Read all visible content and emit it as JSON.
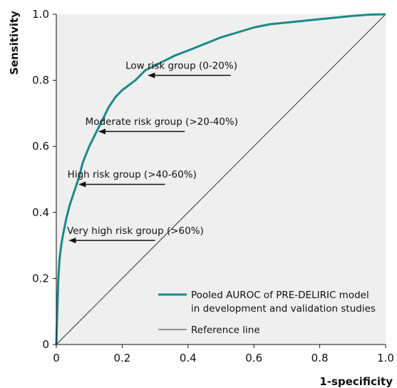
{
  "chart_data": {
    "type": "line",
    "title": "",
    "xlabel": "1-specificity",
    "ylabel": "Sensitivity",
    "xlim": [
      0,
      1
    ],
    "ylim": [
      0,
      1
    ],
    "x_ticks": [
      "0",
      "0.2",
      "0.4",
      "0.6",
      "0.8",
      "1.0"
    ],
    "y_ticks": [
      "0",
      "0.2",
      "0.4",
      "0.6",
      "0.8",
      "1.0"
    ],
    "grid": false,
    "background_color": "#efefef",
    "legend_position": "bottom-right",
    "series": [
      {
        "name": "Pooled AUROC of PRE-DELIRIC model in development and validation studies",
        "legend_lines": [
          "Pooled AUROC of PRE-DELIRIC model",
          "in development and validation studies"
        ],
        "color": "#1a8a8a",
        "x": [
          0,
          0.003,
          0.006,
          0.01,
          0.015,
          0.02,
          0.03,
          0.04,
          0.05,
          0.06,
          0.07,
          0.08,
          0.1,
          0.12,
          0.14,
          0.16,
          0.18,
          0.2,
          0.22,
          0.24,
          0.27,
          0.3,
          0.33,
          0.36,
          0.4,
          0.45,
          0.5,
          0.55,
          0.6,
          0.65,
          0.7,
          0.75,
          0.8,
          0.85,
          0.9,
          0.95,
          1.0
        ],
        "y": [
          0,
          0.1,
          0.2,
          0.26,
          0.3,
          0.33,
          0.38,
          0.42,
          0.45,
          0.48,
          0.51,
          0.55,
          0.6,
          0.64,
          0.68,
          0.72,
          0.75,
          0.77,
          0.785,
          0.8,
          0.83,
          0.845,
          0.86,
          0.875,
          0.89,
          0.91,
          0.93,
          0.945,
          0.96,
          0.97,
          0.975,
          0.98,
          0.985,
          0.99,
          0.995,
          0.999,
          1.0
        ]
      },
      {
        "name": "Reference line",
        "color": "#333333",
        "x": [
          0,
          1
        ],
        "y": [
          0,
          1
        ]
      }
    ],
    "annotations": [
      {
        "text": "Low risk group (0-20%)",
        "arrow_from": [
          0.53,
          0.815
        ],
        "arrow_to": [
          0.28,
          0.815
        ],
        "text_at": [
          0.38,
          0.835
        ]
      },
      {
        "text": "Moderate risk group (>20-40%)",
        "arrow_from": [
          0.39,
          0.645
        ],
        "arrow_to": [
          0.13,
          0.645
        ],
        "text_at": [
          0.32,
          0.665
        ]
      },
      {
        "text": "High risk group (>40-60%)",
        "arrow_from": [
          0.33,
          0.485
        ],
        "arrow_to": [
          0.07,
          0.485
        ],
        "text_at": [
          0.23,
          0.505
        ]
      },
      {
        "text": "Very high risk group (>60%)",
        "arrow_from": [
          0.3,
          0.315
        ],
        "arrow_to": [
          0.04,
          0.315
        ],
        "text_at": [
          0.24,
          0.335
        ]
      }
    ]
  }
}
